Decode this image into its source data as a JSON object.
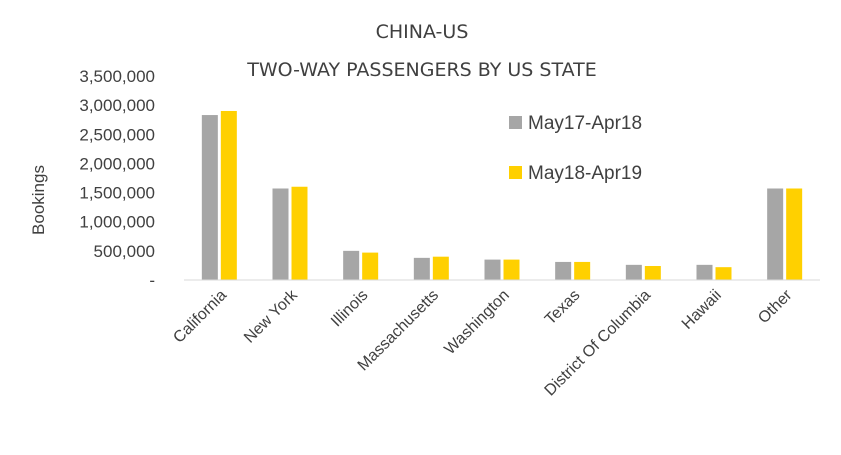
{
  "chart_data": {
    "type": "bar",
    "title": "CHINA-US",
    "subtitle": "TWO-WAY PASSENGERS BY US STATE",
    "xlabel": "",
    "ylabel": "Bookings",
    "ylim": [
      0,
      3500000
    ],
    "yticks": [
      0,
      500000,
      1000000,
      1500000,
      2000000,
      2500000,
      3000000,
      3500000
    ],
    "ytick_labels": [
      "-",
      "500,000",
      "1,000,000",
      "1,500,000",
      "2,000,000",
      "2,500,000",
      "3,000,000",
      "3,500,000"
    ],
    "categories": [
      "California",
      "New York",
      "Illinois",
      "Massachusetts",
      "Washington",
      "Texas",
      "District Of Columbia",
      "Hawaii",
      "Other"
    ],
    "series": [
      {
        "name": "May17-Apr18",
        "color": "#A6A6A6",
        "values": [
          2830000,
          1570000,
          500000,
          380000,
          350000,
          310000,
          260000,
          260000,
          1570000
        ]
      },
      {
        "name": "May18-Apr19",
        "color": "#FFD000",
        "values": [
          2900000,
          1600000,
          470000,
          400000,
          350000,
          310000,
          240000,
          220000,
          1570000
        ]
      }
    ],
    "grid": false,
    "legend_position": "top-right"
  }
}
